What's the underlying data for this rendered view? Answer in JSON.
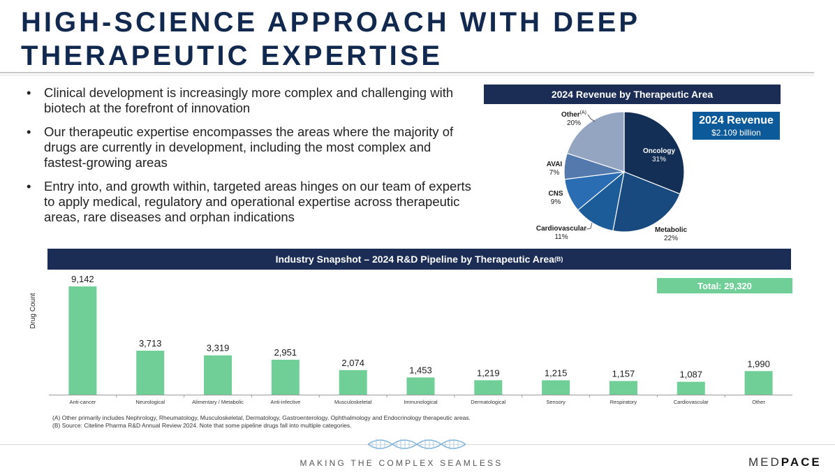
{
  "page": {
    "title_line1": "HIGH-SCIENCE APPROACH WITH DEEP",
    "title_line2": "THERAPEUTIC EXPERTISE"
  },
  "bullets": [
    "Clinical development is increasingly more complex and challenging with biotech at the forefront of innovation",
    "Our therapeutic expertise encompasses the areas where the majority of drugs are currently in development, including the most complex and fastest-growing areas",
    "Entry into, and growth within, targeted areas hinges on our team of experts to apply medical, regulatory and operational expertise across therapeutic areas, rare diseases and orphan indications"
  ],
  "bullet_glyph": "•",
  "revenue_box": {
    "title": "2024 Revenue",
    "value": "$2.109 billion"
  },
  "chart_data": [
    {
      "type": "pie",
      "title": "2024 Revenue by Therapeutic Area",
      "slices": [
        {
          "label": "Oncology",
          "value": 31,
          "display": "31%",
          "color": "#132f55"
        },
        {
          "label": "Metabolic",
          "value": 22,
          "display": "22%",
          "color": "#184a7f"
        },
        {
          "label": "Cardiovascular",
          "value": 11,
          "display": "11%",
          "color": "#1c5c99"
        },
        {
          "label": "CNS",
          "value": 9,
          "display": "9%",
          "color": "#2b6db3"
        },
        {
          "label": "AVAI",
          "value": 7,
          "display": "7%",
          "color": "#5379ad"
        },
        {
          "label": "Other",
          "value": 20,
          "display": "20%",
          "color": "#93a5c1",
          "superscript": "(A)"
        }
      ]
    },
    {
      "type": "bar",
      "title": "Industry Snapshot – 2024 R&D Pipeline by Therapeutic Area",
      "title_superscript": "(B)",
      "ylabel": "Drug Count",
      "xlabel": "",
      "categories": [
        "Anti-cancer",
        "Neurological",
        "Alimentary / Metabolic",
        "Anti-infective",
        "Musculoskeletal",
        "Immunological",
        "Dermatological",
        "Sensory",
        "Respiratory",
        "Cardiovascular",
        "Other"
      ],
      "values": [
        9142,
        3713,
        3319,
        2951,
        2074,
        1453,
        1219,
        1215,
        1157,
        1087,
        1990
      ],
      "value_labels": [
        "9,142",
        "3,713",
        "3,319",
        "2,951",
        "2,074",
        "1,453",
        "1,219",
        "1,215",
        "1,157",
        "1,087",
        "1,990"
      ],
      "ylim": [
        0,
        9142
      ],
      "grid": false,
      "bar_color": "#6fcf97",
      "total_label": "Total: 29,320"
    }
  ],
  "footnotes": [
    "(A) Other primarily includes Nephrology, Rheumatology, Musculoskeletal, Dermatology, Gastroenterology, Ophthalmology and Endocrinology therapeutic areas.",
    "(B) Source: Citeline Pharma R&D Annual Review 2024. Note that some pipeline drugs fall into multiple categories."
  ],
  "footer": {
    "tagline": "MAKING THE COMPLEX SEAMLESS",
    "logo_part1": "MED",
    "logo_part2": "PACE"
  }
}
